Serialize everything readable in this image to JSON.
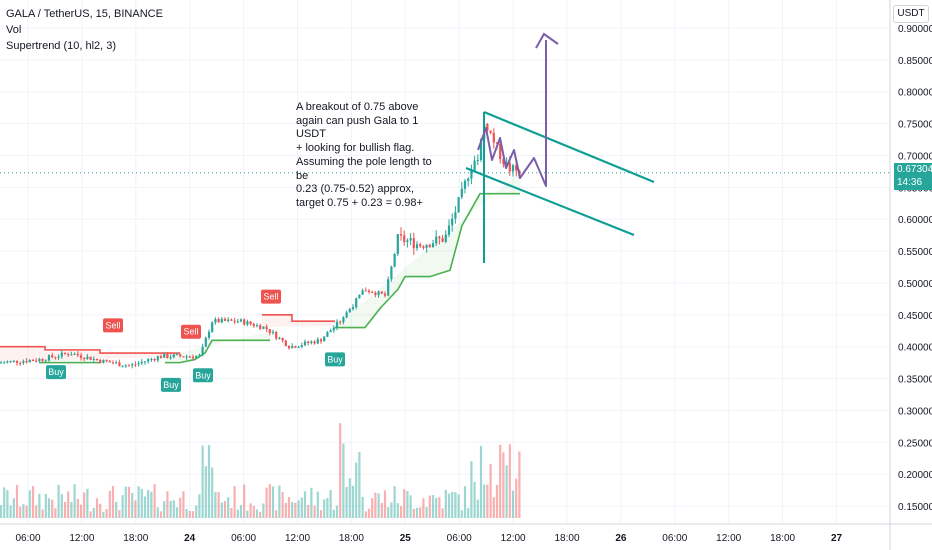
{
  "legend": {
    "symbol": "GALA / TetherUS, 15, BINANCE",
    "indicator_vol": "Vol",
    "indicator_supertrend": "Supertrend (10, hl2, 3)"
  },
  "annotation": "A breakout of 0.75 above\nagain can push Gala to 1 USDT\n+ looking for bullish flag.\nAssuming the pole length to be\n0.23 (0.75-0.52) approx,\ntarget 0.75 + 0.23 = 0.98+",
  "price_axis": {
    "currency": "USDT",
    "current_price": "0.67304",
    "countdown": "14:36"
  },
  "colors": {
    "up": "#26a69a",
    "down": "#ef5350",
    "supertrend_up": "#4caf50",
    "supertrend_down": "#ef5350",
    "trendline": "#0f9e94",
    "arrow": "#7b5ea7"
  },
  "chart_data": {
    "type": "candlestick",
    "y_ticks": [
      "0.90000",
      "0.85000",
      "0.80000",
      "0.75000",
      "0.70000",
      "0.65000",
      "0.60000",
      "0.55000",
      "0.50000",
      "0.45000",
      "0.40000",
      "0.35000",
      "0.30000",
      "0.25000",
      "0.20000",
      "0.15000"
    ],
    "x_ticks": [
      "06:00",
      "12:00",
      "18:00",
      "24",
      "06:00",
      "12:00",
      "18:00",
      "25",
      "06:00",
      "12:00",
      "18:00",
      "26",
      "06:00",
      "12:00",
      "18:00",
      "27"
    ],
    "signals": [
      {
        "label": "Buy",
        "type": "buy",
        "price": 0.39
      },
      {
        "label": "Sell",
        "type": "sell",
        "price": 0.41
      },
      {
        "label": "Buy",
        "type": "buy",
        "price": 0.37
      },
      {
        "label": "Sell",
        "type": "sell",
        "price": 0.4
      },
      {
        "label": "Buy",
        "type": "buy",
        "price": 0.385
      },
      {
        "label": "Sell",
        "type": "sell",
        "price": 0.455
      },
      {
        "label": "Buy",
        "type": "buy",
        "price": 0.41
      }
    ],
    "key_levels": {
      "pole_bottom": 0.52,
      "flag_top": 0.75,
      "target": 0.98
    }
  }
}
